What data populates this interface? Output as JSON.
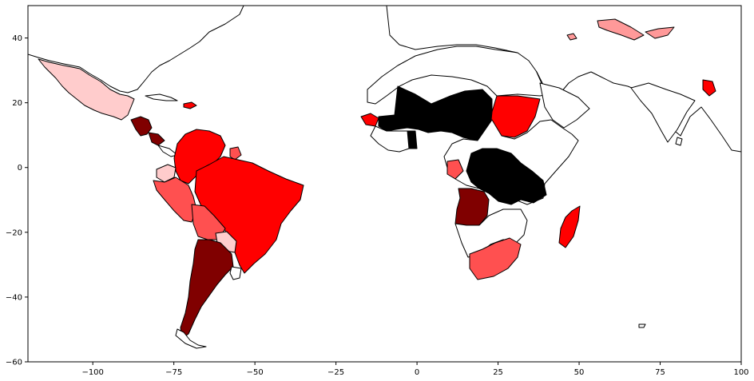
{
  "chart_data": {
    "type": "choropleth_map",
    "title": "",
    "xlabel": "",
    "ylabel": "",
    "xlim": [
      -120,
      100
    ],
    "ylim": [
      -60,
      50
    ],
    "xticks": [
      -100,
      -75,
      -50,
      -25,
      0,
      25,
      50,
      75,
      100
    ],
    "yticks": [
      40,
      20,
      0,
      -20,
      -40,
      -60
    ],
    "xtick_labels": [
      "−100",
      "−75",
      "−50",
      "−25",
      "0",
      "25",
      "50",
      "75",
      "100"
    ],
    "ytick_labels": [
      "40",
      "20",
      "0",
      "−20",
      "−40",
      "−60"
    ],
    "grid": false,
    "legend": "none",
    "color_scale": {
      "none": "#ffffff",
      "lightest": "#ffcccc",
      "light": "#ff9999",
      "medium": "#ff5050",
      "strong": "#ff0000",
      "dark": "#800000",
      "highest": "#000000"
    },
    "regions": [
      {
        "name": "Mexico",
        "level": "lightest",
        "color": "#ffcccc"
      },
      {
        "name": "Guatemala",
        "level": "dark",
        "color": "#800000"
      },
      {
        "name": "Honduras",
        "level": "dark",
        "color": "#800000"
      },
      {
        "name": "Nicaragua",
        "level": "dark",
        "color": "#800000"
      },
      {
        "name": "Dominican Republic",
        "level": "strong",
        "color": "#ff0000"
      },
      {
        "name": "Colombia",
        "level": "strong",
        "color": "#ff0000"
      },
      {
        "name": "Venezuela",
        "level": "strong",
        "color": "#ff0000"
      },
      {
        "name": "Suriname",
        "level": "medium",
        "color": "#ff5050"
      },
      {
        "name": "Ecuador",
        "level": "lightest",
        "color": "#ffcccc"
      },
      {
        "name": "Peru",
        "level": "medium",
        "color": "#ff5050"
      },
      {
        "name": "Brazil",
        "level": "strong",
        "color": "#ff0000"
      },
      {
        "name": "Bolivia",
        "level": "medium",
        "color": "#ff5050"
      },
      {
        "name": "Paraguay",
        "level": "lightest",
        "color": "#ffcccc"
      },
      {
        "name": "Chile",
        "level": "dark",
        "color": "#800000"
      },
      {
        "name": "Argentina",
        "level": "dark",
        "color": "#800000"
      },
      {
        "name": "Senegal",
        "level": "strong",
        "color": "#ff0000"
      },
      {
        "name": "Mali",
        "level": "highest",
        "color": "#000000"
      },
      {
        "name": "Niger",
        "level": "highest",
        "color": "#000000"
      },
      {
        "name": "Chad",
        "level": "highest",
        "color": "#000000"
      },
      {
        "name": "Burkina Faso",
        "level": "highest",
        "color": "#000000"
      },
      {
        "name": "Guinea",
        "level": "highest",
        "color": "#000000"
      },
      {
        "name": "Togo",
        "level": "highest",
        "color": "#000000"
      },
      {
        "name": "DR Congo",
        "level": "highest",
        "color": "#000000"
      },
      {
        "name": "Tanzania",
        "level": "highest",
        "color": "#000000"
      },
      {
        "name": "Malawi",
        "level": "highest",
        "color": "#000000"
      },
      {
        "name": "Sudan",
        "level": "strong",
        "color": "#ff0000"
      },
      {
        "name": "Gabon",
        "level": "medium",
        "color": "#ff5050"
      },
      {
        "name": "Angola",
        "level": "dark",
        "color": "#800000"
      },
      {
        "name": "Madagascar",
        "level": "strong",
        "color": "#ff0000"
      },
      {
        "name": "South Africa",
        "level": "medium",
        "color": "#ff5050"
      },
      {
        "name": "Uzbekistan",
        "level": "light",
        "color": "#ff9999"
      },
      {
        "name": "Kyrgyzstan",
        "level": "light",
        "color": "#ff9999"
      },
      {
        "name": "Armenia",
        "level": "light",
        "color": "#ff9999"
      },
      {
        "name": "Bangladesh",
        "level": "strong",
        "color": "#ff0000"
      }
    ]
  }
}
